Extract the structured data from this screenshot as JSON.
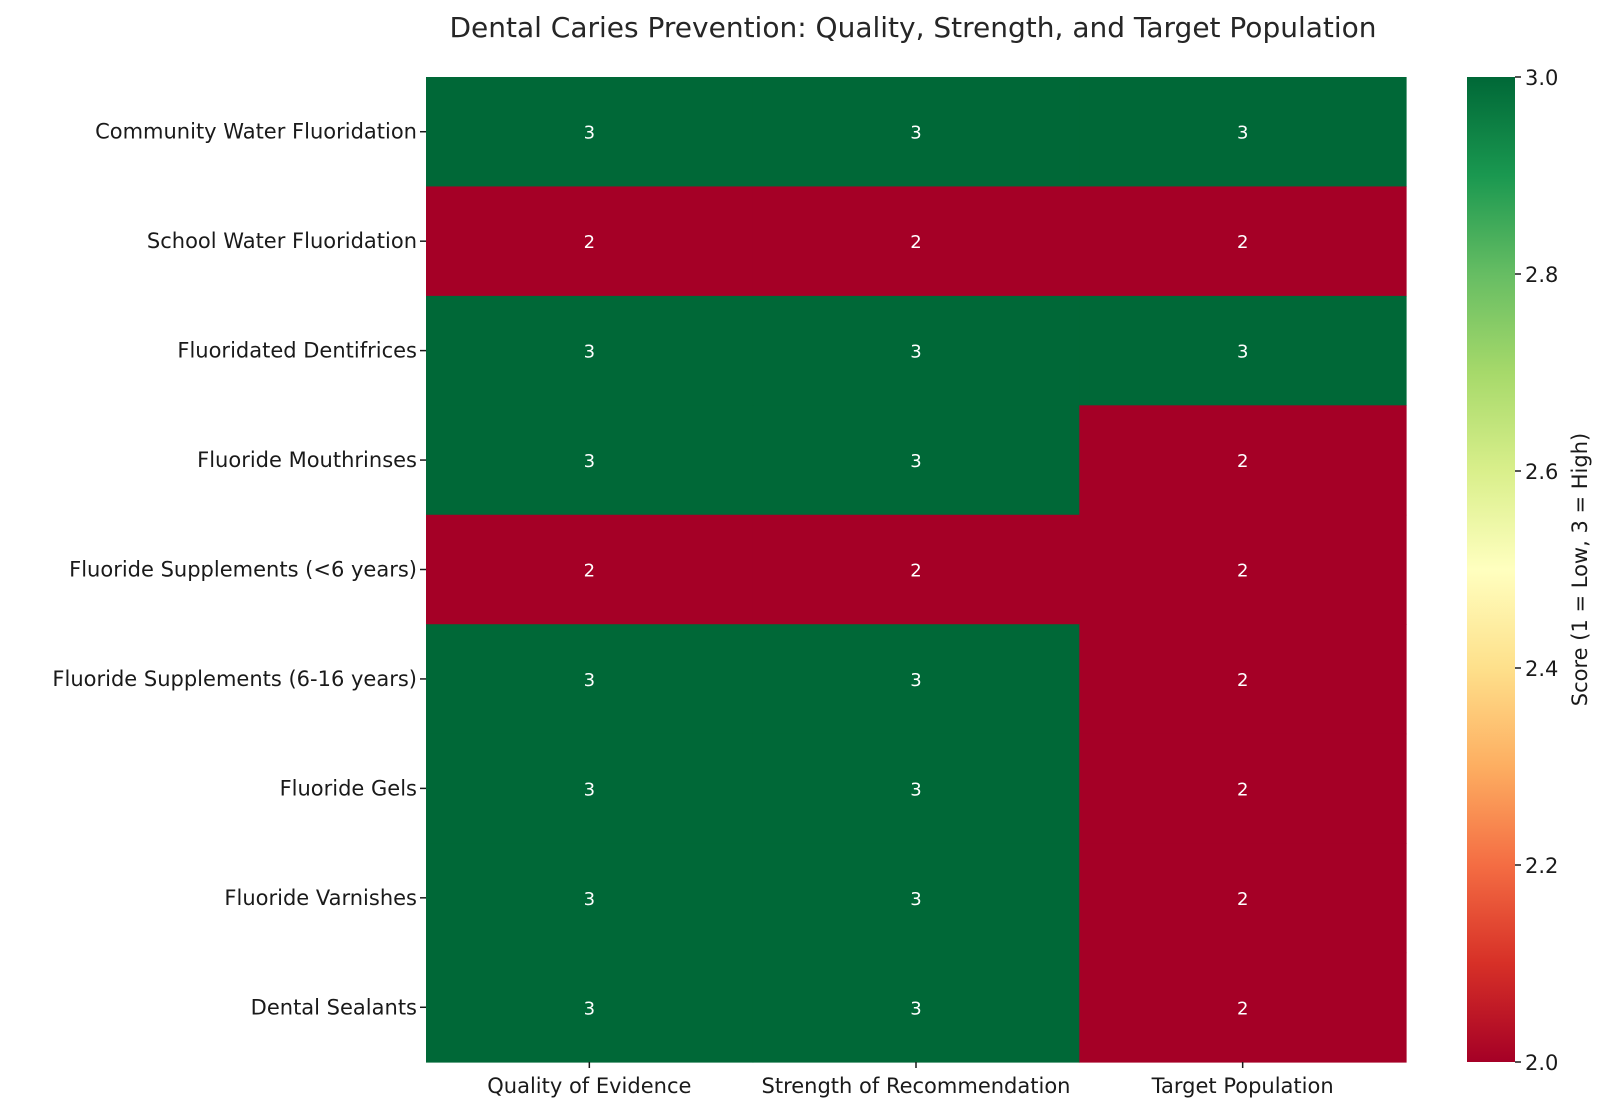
{
  "chart_data": {
    "type": "heatmap",
    "title": "Dental Caries Prevention: Quality, Strength, and Target Population",
    "columns": [
      "Quality of Evidence",
      "Strength of Recommendation",
      "Target Population"
    ],
    "rows": [
      "Community Water Fluoridation",
      "School Water Fluoridation",
      "Fluoridated Dentifrices",
      "Fluoride Mouthrinses",
      "Fluoride Supplements (<6 years)",
      "Fluoride Supplements (6-16 years)",
      "Fluoride Gels",
      "Fluoride Varnishes",
      "Dental Sealants"
    ],
    "values": [
      [
        3,
        3,
        3
      ],
      [
        2,
        2,
        2
      ],
      [
        3,
        3,
        3
      ],
      [
        3,
        3,
        2
      ],
      [
        2,
        2,
        2
      ],
      [
        3,
        3,
        2
      ],
      [
        3,
        3,
        2
      ],
      [
        3,
        3,
        2
      ],
      [
        3,
        3,
        2
      ]
    ],
    "colormap": "RdYlGn",
    "color_range": [
      2.0,
      3.0
    ],
    "colors": {
      "low": "#a50026",
      "high": "#006837"
    },
    "colorbar": {
      "label": "Score (1 = Low, 3 = High)",
      "ticks": [
        "2.0",
        "2.2",
        "2.4",
        "2.6",
        "2.8",
        "3.0"
      ]
    }
  }
}
